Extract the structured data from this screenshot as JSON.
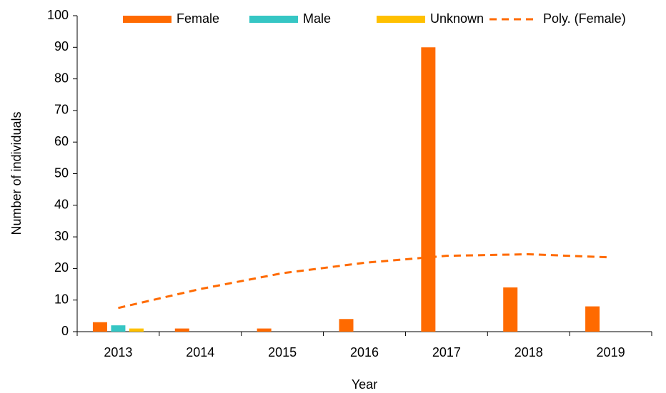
{
  "chart_data": {
    "type": "bar",
    "x_label": "Year",
    "y_label": "Number of individuals",
    "categories": [
      "2013",
      "2014",
      "2015",
      "2016",
      "2017",
      "2018",
      "2019"
    ],
    "series": [
      {
        "name": "Female",
        "color": "#ff6a00",
        "values": [
          3,
          1,
          1,
          4,
          90,
          14,
          8
        ]
      },
      {
        "name": "Male",
        "color": "#36c6c4",
        "values": [
          2,
          0,
          0,
          0,
          0,
          0,
          0
        ]
      },
      {
        "name": "Unknown",
        "color": "#ffc000",
        "values": [
          1,
          0,
          0,
          0,
          0,
          0,
          0
        ]
      },
      {
        "name": "Poly. (Female)",
        "color": "#ff6a00",
        "type": "line",
        "dashed": true,
        "values": [
          7.5,
          13.5,
          18.5,
          21.8,
          24,
          24.5,
          23.5
        ]
      }
    ],
    "ylim": [
      0,
      100
    ],
    "yticks": [
      0,
      10,
      20,
      30,
      40,
      50,
      60,
      70,
      80,
      90,
      100
    ],
    "legend": "top"
  }
}
